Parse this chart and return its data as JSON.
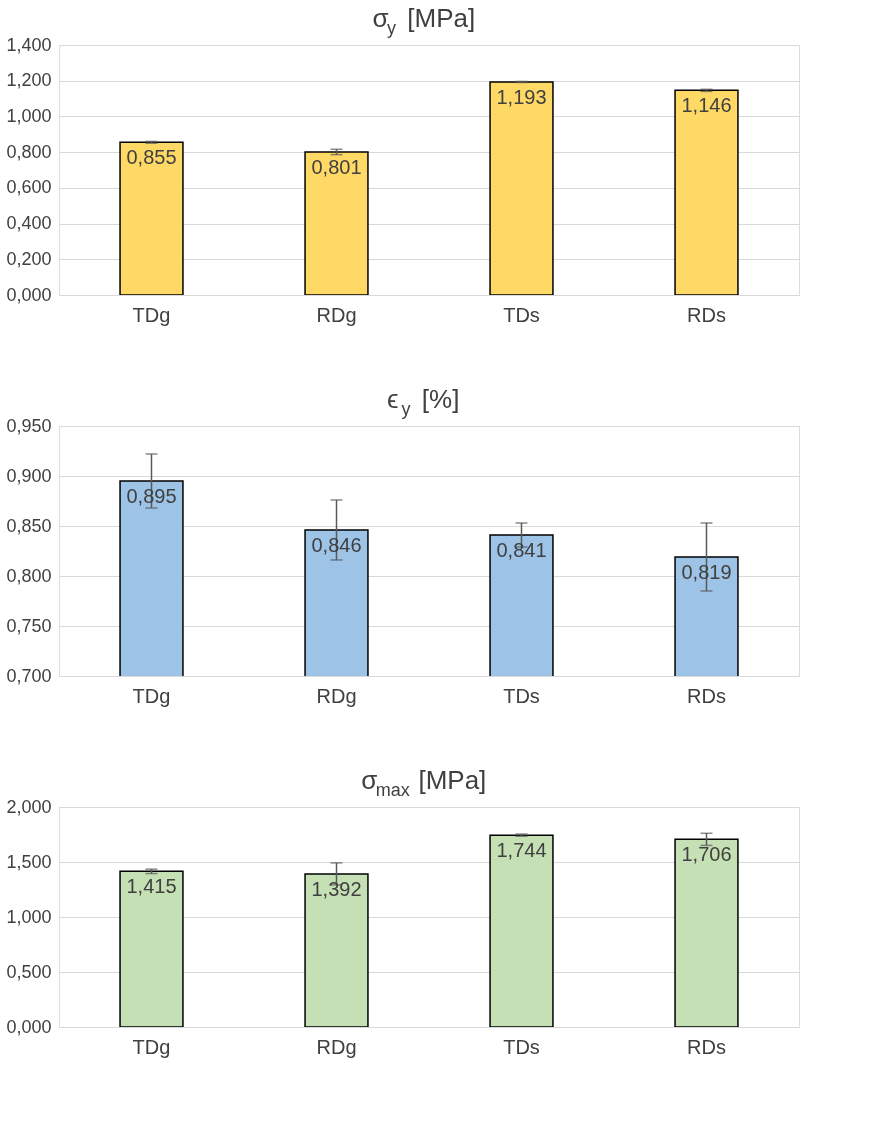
{
  "chart_data": [
    {
      "type": "bar",
      "title": "σ$_{y}$ [MPa]",
      "categories": [
        "TDg",
        "RDg",
        "TDs",
        "RDs"
      ],
      "series": [
        {
          "color": "#ffd966",
          "values": [
            0.855,
            0.801,
            1.193,
            1.146
          ],
          "errors": [
            0.005,
            0.015,
            0.003,
            0.006
          ],
          "value_labels": [
            "0,855",
            "0,801",
            "1,193",
            "1,146"
          ]
        }
      ],
      "ylim": [
        0,
        1.4
      ],
      "yticks": [
        {
          "value": 0,
          "label": "0,000"
        },
        {
          "value": 0.2,
          "label": "0,200"
        },
        {
          "value": 0.4,
          "label": "0,400"
        },
        {
          "value": 0.6,
          "label": "0,600"
        },
        {
          "value": 0.8,
          "label": "0,800"
        },
        {
          "value": 1.0,
          "label": "1,000"
        },
        {
          "value": 1.2,
          "label": "1,200"
        },
        {
          "value": 1.4,
          "label": "1,400"
        }
      ],
      "grid": "y"
    },
    {
      "type": "bar",
      "title": "ϵ$_{y}$ [%]",
      "categories": [
        "TDg",
        "RDg",
        "TDs",
        "RDs"
      ],
      "series": [
        {
          "color": "#9dc3e6",
          "values": [
            0.895,
            0.846,
            0.841,
            0.819
          ],
          "errors": [
            0.027,
            0.03,
            0.012,
            0.034
          ],
          "value_labels": [
            "0,895",
            "0,846",
            "0,841",
            "0,819"
          ]
        }
      ],
      "ylim": [
        0.7,
        0.95
      ],
      "yticks": [
        {
          "value": 0.7,
          "label": "0,700"
        },
        {
          "value": 0.75,
          "label": "0,750"
        },
        {
          "value": 0.8,
          "label": "0,800"
        },
        {
          "value": 0.85,
          "label": "0,850"
        },
        {
          "value": 0.9,
          "label": "0,900"
        },
        {
          "value": 0.95,
          "label": "0,950"
        }
      ],
      "grid": "y"
    },
    {
      "type": "bar",
      "title": "σ$_{max}$ [MPa]",
      "categories": [
        "TDg",
        "RDg",
        "TDs",
        "RDs"
      ],
      "series": [
        {
          "color": "#c5e0b4",
          "values": [
            1.415,
            1.392,
            1.744,
            1.706
          ],
          "errors": [
            0.02,
            0.1,
            0.01,
            0.055
          ],
          "value_labels": [
            "1,415",
            "1,392",
            "1,744",
            "1,706"
          ]
        }
      ],
      "ylim": [
        0,
        2.0
      ],
      "yticks": [
        {
          "value": 0,
          "label": "0,000"
        },
        {
          "value": 0.5,
          "label": "0,500"
        },
        {
          "value": 1.0,
          "label": "1,000"
        },
        {
          "value": 1.5,
          "label": "1,500"
        },
        {
          "value": 2.0,
          "label": "2,000"
        }
      ],
      "grid": "y"
    }
  ]
}
